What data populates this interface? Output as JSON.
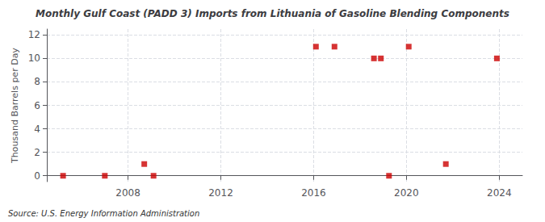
{
  "chart_data": {
    "type": "scatter",
    "title": "Monthly Gulf Coast (PADD 3) Imports from Lithuania of Gasoline Blending Components",
    "ylabel": "Thousand Barrels per Day",
    "source": "Source: U.S. Energy Information Administration",
    "x": [
      2005.2,
      2007.0,
      2008.7,
      2009.1,
      2016.1,
      2016.9,
      2018.6,
      2018.9,
      2019.25,
      2020.1,
      2021.7,
      2023.9
    ],
    "values": [
      0,
      0,
      1,
      0,
      11,
      11,
      10,
      10,
      0,
      11,
      1,
      10
    ],
    "color": "#cc0000",
    "marker": "square",
    "xlim": [
      2004.5,
      2025.0
    ],
    "xticks": [
      2008,
      2012,
      2016,
      2020,
      2024
    ],
    "ylim": [
      -0.5,
      12.5
    ],
    "yticks": [
      0,
      2,
      4,
      6,
      8,
      10,
      12
    ],
    "grid": true
  }
}
